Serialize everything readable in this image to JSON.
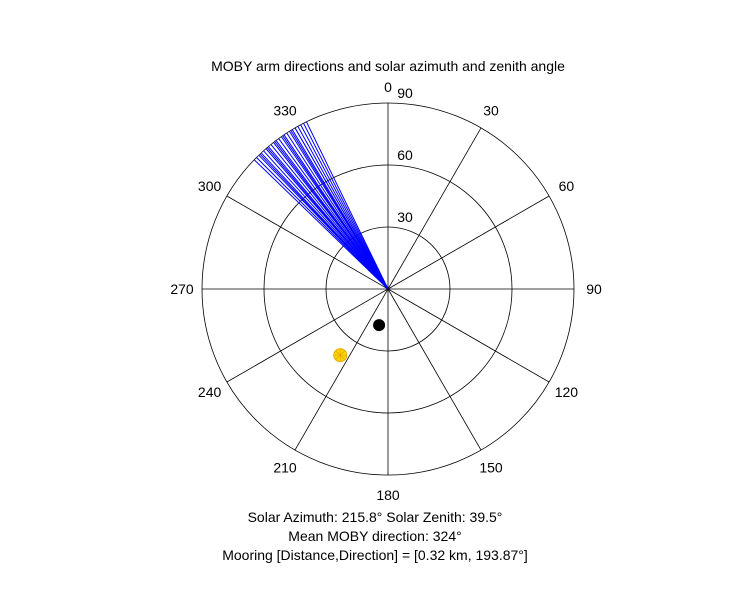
{
  "chart_data": {
    "type": "polar",
    "title": "MOBY arm directions and solar azimuth and zenith angle",
    "angle_ticks": [
      "0",
      "30",
      "60",
      "90",
      "120",
      "150",
      "180",
      "210",
      "240",
      "270",
      "300",
      "330"
    ],
    "angle_tick_values": [
      0,
      30,
      60,
      90,
      120,
      150,
      180,
      210,
      240,
      270,
      300,
      330
    ],
    "radial_ticks": [
      "30",
      "60",
      "90"
    ],
    "radial_tick_values": [
      30,
      60,
      90
    ],
    "rlim": [
      0,
      90
    ],
    "angle_direction": "clockwise",
    "zero_location": "top",
    "arm_directions": [
      {
        "azimuth": 314,
        "color": "#0000ff"
      },
      {
        "azimuth": 315,
        "color": "#0000ff"
      },
      {
        "azimuth": 316,
        "color": "#0000ff"
      },
      {
        "azimuth": 316.5,
        "color": "#0000ff"
      },
      {
        "azimuth": 317,
        "color": "#0000ff"
      },
      {
        "azimuth": 318,
        "color": "#0000ff"
      },
      {
        "azimuth": 319,
        "color": "#0000ff"
      },
      {
        "azimuth": 319.5,
        "color": "#0000ff"
      },
      {
        "azimuth": 320,
        "color": "#0000ff"
      },
      {
        "azimuth": 321,
        "color": "#0000ff"
      },
      {
        "azimuth": 322,
        "color": "#0000ff"
      },
      {
        "azimuth": 322.5,
        "color": "#0000ff"
      },
      {
        "azimuth": 323,
        "color": "#0000ff"
      },
      {
        "azimuth": 324,
        "color": "#0000ff"
      },
      {
        "azimuth": 325,
        "color": "#0000ff"
      },
      {
        "azimuth": 325.5,
        "color": "#0000ff"
      },
      {
        "azimuth": 326,
        "color": "#0000ff"
      },
      {
        "azimuth": 327,
        "color": "#0000ff"
      },
      {
        "azimuth": 328,
        "color": "#0000ff"
      },
      {
        "azimuth": 328.5,
        "color": "#0000ff"
      },
      {
        "azimuth": 329,
        "color": "#0000ff"
      },
      {
        "azimuth": 330,
        "color": "#0000ff"
      },
      {
        "azimuth": 331,
        "color": "#0000ff"
      },
      {
        "azimuth": 332,
        "color": "#0000ff"
      },
      {
        "azimuth": 333,
        "color": "#0000ff"
      },
      {
        "azimuth": 334,
        "color": "#0000ff"
      }
    ],
    "arm_extent": 90,
    "mooring_marker": {
      "azimuth": 193.87,
      "radius": 18,
      "color": "#000000"
    },
    "sun_marker": {
      "azimuth": 215.8,
      "zenith": 39.5,
      "color": "#ffd700",
      "outline": "#e6a800"
    },
    "captions": {
      "solar": "Solar Azimuth: 215.8°    Solar Zenith: 39.5°",
      "mean_moby": "Mean MOBY direction: 324°",
      "mooring": "Mooring [Distance,Direction] = [0.32 km, 193.87°]"
    }
  }
}
